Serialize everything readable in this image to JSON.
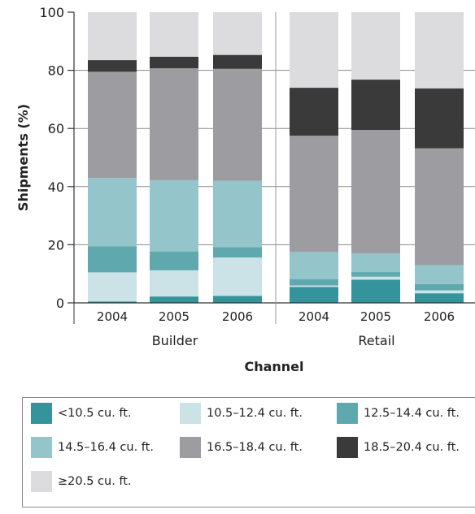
{
  "chart_data": {
    "type": "bar",
    "stacked": true,
    "ylabel": "Shipments (%)",
    "xlabel": "Channel",
    "ylim": [
      0,
      100
    ],
    "yticks": [
      0,
      20,
      40,
      60,
      80,
      100
    ],
    "grid": false,
    "groups": [
      {
        "name": "Builder",
        "categories": [
          "2004",
          "2005",
          "2006"
        ]
      },
      {
        "name": "Retail",
        "categories": [
          "2004",
          "2005",
          "2006"
        ]
      }
    ],
    "series": [
      {
        "name": "<10.5 cu. ft.",
        "color": "#35939b",
        "values": [
          0.5,
          2.2,
          2.4,
          5.5,
          8.0,
          3.3
        ]
      },
      {
        "name": "10.5–12.4 cu. ft.",
        "color": "#cbe3e6",
        "values": [
          10.0,
          9.0,
          13.2,
          0.5,
          1.0,
          1.0
        ]
      },
      {
        "name": "12.5–14.4 cu. ft.",
        "color": "#5fa8ad",
        "values": [
          9.0,
          6.5,
          3.6,
          2.2,
          1.6,
          2.2
        ]
      },
      {
        "name": "14.5–16.4 cu. ft.",
        "color": "#93c5cb",
        "values": [
          23.5,
          24.5,
          22.8,
          9.3,
          6.4,
          6.5
        ]
      },
      {
        "name": "16.5–18.4 cu. ft.",
        "color": "#9c9ca1",
        "values": [
          36.5,
          38.5,
          38.5,
          40.0,
          42.5,
          40.2
        ]
      },
      {
        "name": "18.5–20.4 cu. ft.",
        "color": "#3a3a3a",
        "values": [
          4.0,
          4.0,
          4.8,
          16.5,
          17.3,
          20.6
        ]
      },
      {
        "name": "≥20.5 cu. ft.",
        "color": "#dcdcde",
        "values": [
          16.5,
          15.3,
          14.7,
          26.0,
          23.2,
          26.2
        ]
      }
    ],
    "legend_position": "bottom"
  }
}
